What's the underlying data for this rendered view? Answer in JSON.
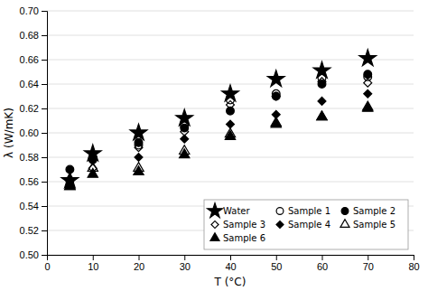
{
  "chart_data": {
    "type": "scatter",
    "xlabel": "T (°C)",
    "ylabel": "λ (W/mK)",
    "xlim": [
      0,
      80
    ],
    "ylim": [
      0.5,
      0.7
    ],
    "xticks": [
      0,
      10,
      20,
      30,
      40,
      50,
      60,
      70,
      80
    ],
    "yticks": [
      {
        "value": 0.5,
        "label": "0.50"
      },
      0.52,
      0.54,
      0.56,
      0.58,
      {
        "value": 0.6,
        "label": "0.60"
      },
      0.62,
      0.64,
      0.66,
      0.68,
      {
        "value": 0.7,
        "label": "0.70"
      }
    ],
    "grid": "y",
    "legend": "lower right",
    "x": [
      5,
      10,
      20,
      30,
      40,
      50,
      60,
      70
    ],
    "series": [
      {
        "name": "Water",
        "color": "black",
        "marker": "star",
        "values": [
          0.561,
          0.583,
          0.6,
          0.612,
          0.632,
          0.644,
          0.651,
          0.661
        ]
      },
      {
        "name": "Sample 1",
        "color": "black",
        "marker": "circle-open",
        "values": [
          0.561,
          0.58,
          0.59,
          0.606,
          0.627,
          0.632,
          0.645,
          0.646
        ]
      },
      {
        "name": "Sample 2",
        "color": "black",
        "marker": "circle",
        "values": [
          0.57,
          0.578,
          0.592,
          0.604,
          0.618,
          0.63,
          0.64,
          0.648
        ]
      },
      {
        "name": "Sample 3",
        "color": "black",
        "marker": "diamond-open",
        "values": [
          0.562,
          0.571,
          0.588,
          0.601,
          0.623,
          0.63,
          0.642,
          0.641
        ]
      },
      {
        "name": "Sample 4",
        "color": "black",
        "marker": "diamond",
        "values": [
          0.562,
          0.579,
          0.58,
          0.595,
          0.607,
          0.615,
          0.626,
          0.632
        ]
      },
      {
        "name": "Sample 5",
        "color": "black",
        "marker": "triangle-open",
        "values": [
          0.556,
          0.571,
          0.571,
          0.585,
          0.599,
          0.608,
          0.613,
          0.621
        ]
      },
      {
        "name": "Sample 6",
        "color": "black",
        "marker": "triangle",
        "values": [
          0.556,
          0.566,
          0.568,
          0.582,
          0.597,
          0.607,
          0.613,
          0.62
        ]
      }
    ]
  }
}
